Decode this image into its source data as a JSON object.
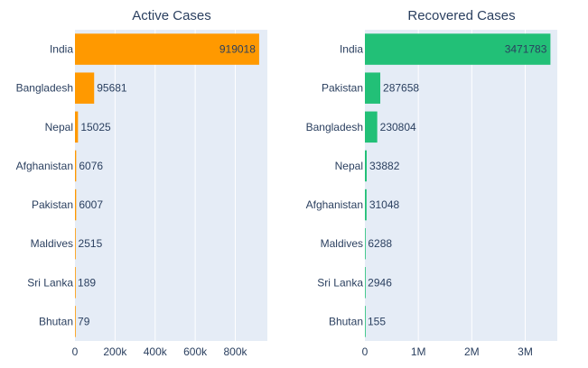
{
  "chart_data": [
    {
      "type": "bar",
      "orientation": "horizontal",
      "title": "Active Cases",
      "categories": [
        "India",
        "Bangladesh",
        "Nepal",
        "Afghanistan",
        "Pakistan",
        "Maldives",
        "Sri Lanka",
        "Bhutan"
      ],
      "values": [
        919018,
        95681,
        15025,
        6076,
        6007,
        2515,
        189,
        79
      ],
      "color": "#ff9900",
      "xlim": [
        0,
        960000
      ],
      "xticks": [
        0,
        200000,
        400000,
        600000,
        800000
      ],
      "xtick_labels": [
        "0",
        "200k",
        "400k",
        "600k",
        "800k"
      ],
      "grid": true
    },
    {
      "type": "bar",
      "orientation": "horizontal",
      "title": "Recovered Cases",
      "categories": [
        "India",
        "Pakistan",
        "Bangladesh",
        "Nepal",
        "Afghanistan",
        "Maldives",
        "Sri Lanka",
        "Bhutan"
      ],
      "values": [
        3471783,
        287658,
        230804,
        33882,
        31048,
        6288,
        2946,
        155
      ],
      "color": "#22c077",
      "xlim": [
        0,
        3600000
      ],
      "xticks": [
        0,
        1000000,
        2000000,
        3000000
      ],
      "xtick_labels": [
        "0",
        "1M",
        "2M",
        "3M"
      ],
      "grid": true
    }
  ],
  "style": {
    "plot_bg": "#e5ecf6",
    "grid_color": "#ffffff",
    "text_color": "#2a3f5f"
  }
}
